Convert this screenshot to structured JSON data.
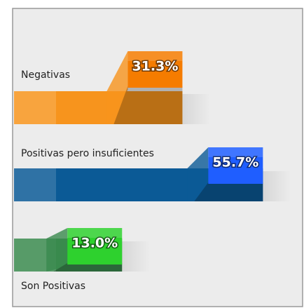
{
  "chart_data": {
    "type": "bar",
    "categories": [
      "Negativas",
      "Positivas pero insuficientes",
      "Son Positivas"
    ],
    "values": [
      31.3,
      55.7,
      13.0
    ],
    "value_labels": [
      "31.3%",
      "55.7%",
      "13.0%"
    ],
    "colors": [
      "#f7941d",
      "#0b5a96",
      "#3a8a4e"
    ],
    "label_colors": [
      "#f57c00",
      "#1f5eff",
      "#2ed12e"
    ]
  }
}
